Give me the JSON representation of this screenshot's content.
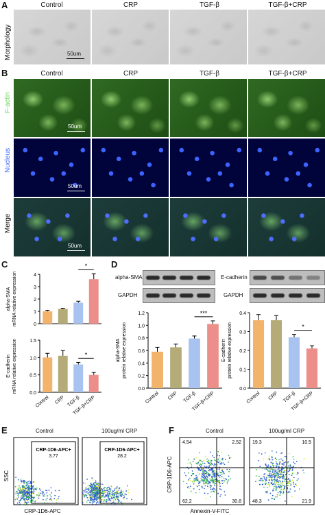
{
  "panel_letters": {
    "a": "A",
    "b": "B",
    "c": "C",
    "d": "D",
    "e": "E",
    "f": "F"
  },
  "groups": [
    "Control",
    "CRP",
    "TGF-β",
    "TGF-β+CRP"
  ],
  "panel_a": {
    "row_label": "Morphology",
    "scale": "50um"
  },
  "panel_b": {
    "rows": [
      "F-actin",
      "Nucleus",
      "Merge"
    ],
    "scale": "50um",
    "colors": {
      "F-actin": "#5fd44a",
      "Nucleus": "#3d63ff",
      "Merge": "#111111"
    }
  },
  "panel_c": {
    "ylabel_top": "alpha-SMA\nmRNA relative expression",
    "ylabel_bottom": "E-cadherin\nmRNA relative expression",
    "sig_top": "*",
    "sig_bottom": "*"
  },
  "panel_d": {
    "blot_left": {
      "protein": "alpha-SMA",
      "loading": "GAPDH"
    },
    "blot_right": {
      "protein": "E-cadherin",
      "loading": "GAPDH"
    },
    "ylabel_left": "alpha-SMA\nprotein relative expression",
    "ylabel_right": "E-cadherin\nprotein relative expression",
    "sig_left": "***",
    "sig_right": "*"
  },
  "panel_e": {
    "titles": [
      "Control",
      "100ug/ml CRP"
    ],
    "gate_label": "CRP-1D6-APC+",
    "values": [
      "3.77",
      "28.2"
    ],
    "ylabel": "SSC",
    "xlabel": "CRP-1D6-APC"
  },
  "panel_f": {
    "titles": [
      "Control",
      "100ug/ml CRP"
    ],
    "ylabel": "CRP-1D6-APC",
    "xlabel": "Annexin-V-FITC",
    "quadrants": [
      [
        "4.54",
        "2.52",
        "62.2",
        "30.8"
      ],
      [
        "19.3",
        "10.5",
        "48.3",
        "21.9"
      ]
    ]
  },
  "bar_colors": [
    "#f2b36b",
    "#b5ab79",
    "#a9c3f0",
    "#ec8f8a"
  ],
  "chart_data": [
    {
      "type": "bar",
      "panel": "C-top",
      "categories": [
        "Control",
        "CRP",
        "TGF-β",
        "TGF-β+CRP"
      ],
      "values": [
        1.0,
        1.2,
        1.7,
        3.6
      ],
      "errors": [
        0.08,
        0.05,
        0.12,
        0.45
      ],
      "ylim": [
        0,
        4
      ],
      "yticks": [
        "0",
        "1",
        "2",
        "3",
        "4"
      ]
    },
    {
      "type": "bar",
      "panel": "C-bottom",
      "categories": [
        "Control",
        "CRP",
        "TGF-β",
        "TGF-β+CRP"
      ],
      "values": [
        1.0,
        1.05,
        0.8,
        0.5
      ],
      "errors": [
        0.12,
        0.15,
        0.06,
        0.07
      ],
      "ylim": [
        0,
        1.5
      ],
      "yticks": [
        "0.0",
        "0.5",
        "1.0",
        "1.5"
      ]
    },
    {
      "type": "bar",
      "panel": "D-left",
      "categories": [
        "Control",
        "CRP",
        "TGF-β",
        "TGF-β+CRP"
      ],
      "values": [
        0.58,
        0.65,
        0.79,
        1.02
      ],
      "errors": [
        0.07,
        0.05,
        0.04,
        0.05
      ],
      "ylim": [
        0,
        1.2
      ],
      "yticks": [
        "0.0",
        "0.2",
        "0.4",
        "0.6",
        "0.8",
        "1.0",
        "1.2"
      ]
    },
    {
      "type": "bar",
      "panel": "D-right",
      "categories": [
        "Control",
        "CRP",
        "TGF-β",
        "TGF-β+CRP"
      ],
      "values": [
        0.36,
        0.36,
        0.27,
        0.21
      ],
      "errors": [
        0.03,
        0.025,
        0.015,
        0.015
      ],
      "ylim": [
        0,
        0.4
      ],
      "yticks": [
        "0.0",
        "0.1",
        "0.2",
        "0.3",
        "0.4"
      ]
    }
  ]
}
